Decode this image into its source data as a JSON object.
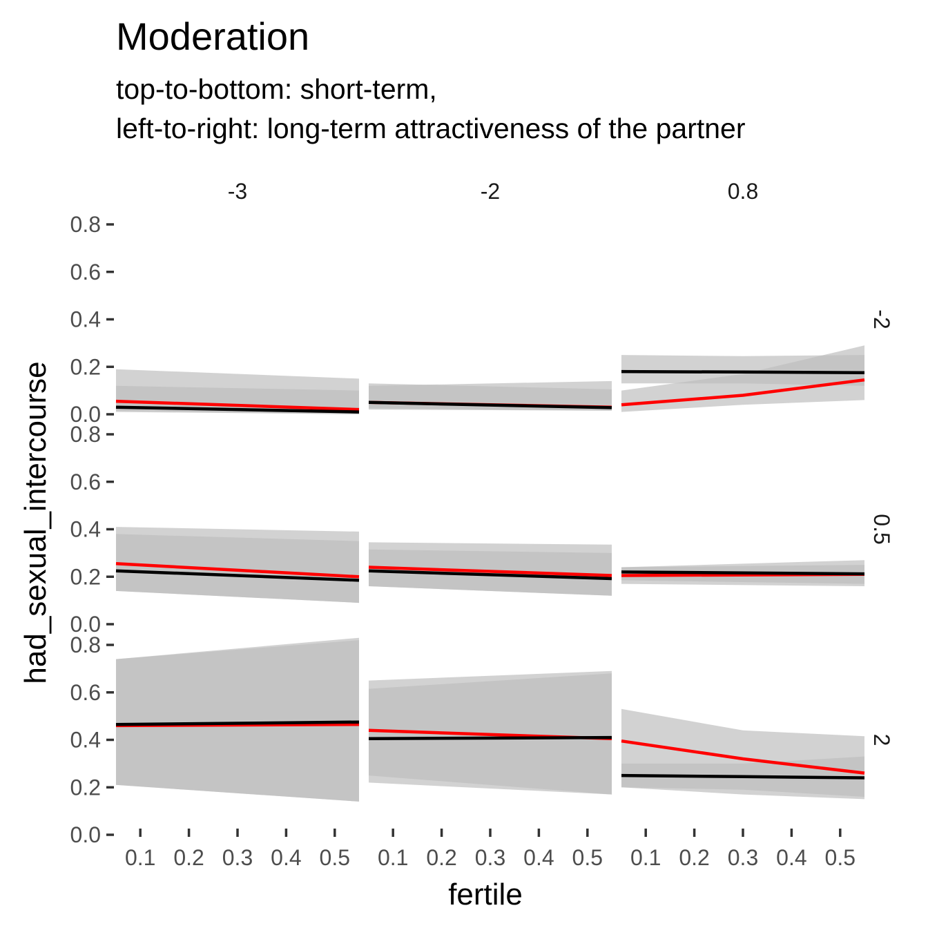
{
  "chart_data": {
    "type": "line",
    "title": "Moderation",
    "subtitle_lines": [
      "top-to-bottom: short-term,",
      "left-to-right: long-term attractiveness of the partner"
    ],
    "xlabel": "fertile",
    "ylabel": "had_sexual_intercourse",
    "x_ticks": [
      "0.1",
      "0.2",
      "0.3",
      "0.4",
      "0.5"
    ],
    "y_ticks": [
      "0.0",
      "0.2",
      "0.4",
      "0.6",
      "0.8"
    ],
    "xlim": [
      0.05,
      0.55
    ],
    "ylim": [
      0.0,
      0.8
    ],
    "col_labels": [
      "-3",
      "-2",
      "0.8"
    ],
    "row_labels": [
      "-2",
      "0.5",
      "2"
    ],
    "grid": false,
    "legend": "none",
    "colors": {
      "red_line": "#ff0000",
      "black_line": "#000000",
      "band_light": "#d1d1d1",
      "band_dark": "#b0b0b0"
    },
    "panels": [
      {
        "row": "-2",
        "col": "-3",
        "x": [
          0.05,
          0.55
        ],
        "red": {
          "y": [
            0.055,
            0.02
          ],
          "lower": [
            0.015,
            0.0
          ],
          "upper": [
            0.19,
            0.15
          ]
        },
        "black": {
          "y": [
            0.03,
            0.01
          ],
          "lower": [
            0.01,
            0.0
          ],
          "upper": [
            0.12,
            0.1
          ]
        }
      },
      {
        "row": "-2",
        "col": "-2",
        "x": [
          0.05,
          0.55
        ],
        "red": {
          "y": [
            0.05,
            0.03
          ],
          "lower": [
            0.02,
            0.015
          ],
          "upper": [
            0.12,
            0.14
          ]
        },
        "black": {
          "y": [
            0.05,
            0.028
          ],
          "lower": [
            0.025,
            0.015
          ],
          "upper": [
            0.13,
            0.105
          ]
        }
      },
      {
        "row": "-2",
        "col": "0.8",
        "x": [
          0.05,
          0.3,
          0.55
        ],
        "red": {
          "y": [
            0.04,
            0.08,
            0.145
          ],
          "lower": [
            0.01,
            0.04,
            0.06
          ],
          "upper": [
            0.1,
            0.17,
            0.29
          ]
        },
        "black": {
          "y": [
            0.18,
            0.178,
            0.175
          ],
          "lower": [
            0.13,
            0.13,
            0.12
          ],
          "upper": [
            0.25,
            0.245,
            0.25
          ]
        }
      },
      {
        "row": "0.5",
        "col": "-3",
        "x": [
          0.05,
          0.55
        ],
        "red": {
          "y": [
            0.255,
            0.2
          ],
          "lower": [
            0.14,
            0.09
          ],
          "upper": [
            0.41,
            0.39
          ]
        },
        "black": {
          "y": [
            0.225,
            0.185
          ],
          "lower": [
            0.14,
            0.09
          ],
          "upper": [
            0.38,
            0.35
          ]
        }
      },
      {
        "row": "0.5",
        "col": "-2",
        "x": [
          0.05,
          0.55
        ],
        "red": {
          "y": [
            0.24,
            0.205
          ],
          "lower": [
            0.16,
            0.12
          ],
          "upper": [
            0.345,
            0.335
          ]
        },
        "black": {
          "y": [
            0.225,
            0.192
          ],
          "lower": [
            0.16,
            0.12
          ],
          "upper": [
            0.315,
            0.3
          ]
        }
      },
      {
        "row": "0.5",
        "col": "0.8",
        "x": [
          0.05,
          0.55
        ],
        "red": {
          "y": [
            0.205,
            0.21
          ],
          "lower": [
            0.17,
            0.16
          ],
          "upper": [
            0.24,
            0.27
          ]
        },
        "black": {
          "y": [
            0.22,
            0.212
          ],
          "lower": [
            0.185,
            0.17
          ],
          "upper": [
            0.24,
            0.25
          ]
        }
      },
      {
        "row": "2",
        "col": "-3",
        "x": [
          0.05,
          0.55
        ],
        "red": {
          "y": [
            0.46,
            0.465
          ],
          "lower": [
            0.21,
            0.14
          ],
          "upper": [
            0.74,
            0.83
          ]
        },
        "black": {
          "y": [
            0.465,
            0.475
          ],
          "lower": [
            0.21,
            0.14
          ],
          "upper": [
            0.74,
            0.82
          ]
        }
      },
      {
        "row": "2",
        "col": "-2",
        "x": [
          0.05,
          0.55
        ],
        "red": {
          "y": [
            0.44,
            0.405
          ],
          "lower": [
            0.22,
            0.17
          ],
          "upper": [
            0.65,
            0.69
          ]
        },
        "black": {
          "y": [
            0.405,
            0.41
          ],
          "lower": [
            0.25,
            0.17
          ],
          "upper": [
            0.615,
            0.68
          ]
        }
      },
      {
        "row": "2",
        "col": "0.8",
        "x": [
          0.05,
          0.3,
          0.55
        ],
        "red": {
          "y": [
            0.395,
            0.32,
            0.26
          ],
          "lower": [
            0.2,
            0.17,
            0.15
          ],
          "upper": [
            0.53,
            0.44,
            0.415
          ]
        },
        "black": {
          "y": [
            0.25,
            0.245,
            0.24
          ],
          "lower": [
            0.2,
            0.19,
            0.16
          ],
          "upper": [
            0.3,
            0.3,
            0.33
          ]
        }
      }
    ]
  }
}
